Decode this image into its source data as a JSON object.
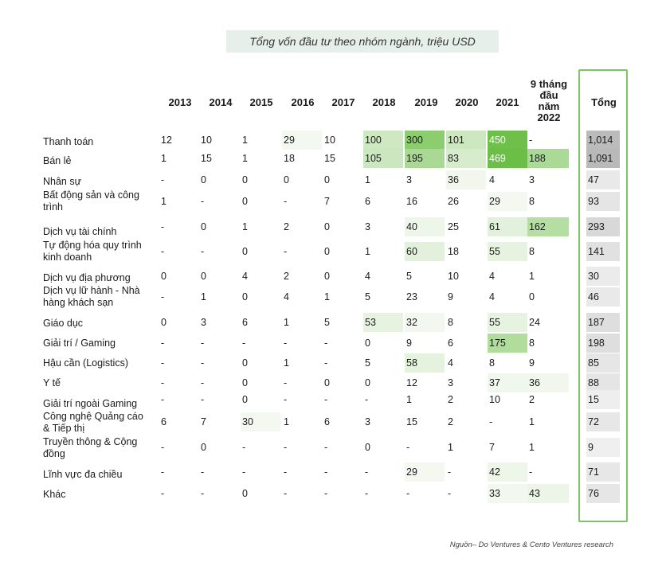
{
  "title": "Tổng vốn đầu tư theo nhóm ngành, triệu USD",
  "footer": "Nguồn– Do Ventures & Cento Ventures research",
  "colors": {
    "frame": "#7cc663",
    "title_bg": "#e7efe9",
    "heat_min": "#f3f8f0",
    "heat_max": "#6bbf47",
    "total_low": "#f2f2f2",
    "total_high": "#b9b9b9"
  },
  "chart_data": {
    "type": "table",
    "title": "Tổng vốn đầu tư theo nhóm ngành, triệu USD",
    "columns": [
      "2013",
      "2014",
      "2015",
      "2016",
      "2017",
      "2018",
      "2019",
      "2020",
      "2021",
      "9 tháng đầu năm 2022",
      "Tổng"
    ],
    "column_lines": [
      [
        "2013"
      ],
      [
        "2014"
      ],
      [
        "2015"
      ],
      [
        "2016"
      ],
      [
        "2017"
      ],
      [
        "2018"
      ],
      [
        "2019"
      ],
      [
        "2020"
      ],
      [
        "2021"
      ],
      [
        "9 tháng",
        "đầu",
        "năm",
        "2022"
      ],
      [
        "Tổng"
      ]
    ],
    "rows": [
      {
        "label": "Thanh toán",
        "values": [
          "12",
          "10",
          "1",
          "29",
          "10",
          "100",
          "300",
          "101",
          "450",
          "-",
          "1,014"
        ]
      },
      {
        "label": "Bán lẻ",
        "values": [
          "1",
          "15",
          "1",
          "18",
          "15",
          "105",
          "195",
          "83",
          "469",
          "188",
          "1,091"
        ]
      },
      {
        "label": "Nhân sự",
        "values": [
          "-",
          "0",
          "0",
          "0",
          "0",
          "1",
          "3",
          "36",
          "4",
          "3",
          "47"
        ]
      },
      {
        "label": "Bất động sản và công trình",
        "values": [
          "1",
          "-",
          "0",
          "-",
          "7",
          "6",
          "16",
          "26",
          "29",
          "8",
          "93"
        ]
      },
      {
        "label": "Dịch vụ tài chính",
        "values": [
          "-",
          "0",
          "1",
          "2",
          "0",
          "3",
          "40",
          "25",
          "61",
          "162",
          "293"
        ]
      },
      {
        "label": "Tự động hóa quy trình kinh doanh",
        "values": [
          "-",
          "-",
          "0",
          "-",
          "0",
          "1",
          "60",
          "18",
          "55",
          "8",
          "141"
        ]
      },
      {
        "label": "Dịch vụ địa phương",
        "values": [
          "0",
          "0",
          "4",
          "2",
          "0",
          "4",
          "5",
          "10",
          "4",
          "1",
          "30"
        ]
      },
      {
        "label": "Dịch vụ lữ hành - Nhà hàng khách sạn",
        "values": [
          "-",
          "1",
          "0",
          "4",
          "1",
          "5",
          "23",
          "9",
          "4",
          "0",
          "46"
        ]
      },
      {
        "label": "Giáo dục",
        "values": [
          "0",
          "3",
          "6",
          "1",
          "5",
          "53",
          "32",
          "8",
          "55",
          "24",
          "187"
        ]
      },
      {
        "label": "Giải trí / Gaming",
        "values": [
          "-",
          "-",
          "-",
          "-",
          "-",
          "0",
          "9",
          "6",
          "175",
          "8",
          "198"
        ]
      },
      {
        "label": "Hậu cần (Logistics)",
        "values": [
          "-",
          "-",
          "0",
          "1",
          "-",
          "5",
          "58",
          "4",
          "8",
          "9",
          "85"
        ]
      },
      {
        "label": "Y tế",
        "values": [
          "-",
          "-",
          "0",
          "-",
          "0",
          "0",
          "12",
          "3",
          "37",
          "36",
          "88"
        ]
      },
      {
        "label": "Giải trí ngoài Gaming",
        "values": [
          "-",
          "-",
          "0",
          "-",
          "-",
          "-",
          "1",
          "2",
          "10",
          "2",
          "15"
        ]
      },
      {
        "label": "Công nghệ Quảng cáo & Tiếp thị",
        "values": [
          "6",
          "7",
          "30",
          "1",
          "6",
          "3",
          "15",
          "2",
          "-",
          "1",
          "72"
        ]
      },
      {
        "label": "Truyền thông & Cộng đồng",
        "values": [
          "-",
          "0",
          "-",
          "-",
          "-",
          "0",
          "-",
          "1",
          "7",
          "1",
          "9"
        ]
      },
      {
        "label": "Lĩnh vực đa chiều",
        "values": [
          "-",
          "-",
          "-",
          "-",
          "-",
          "-",
          "29",
          "-",
          "42",
          "-",
          "71"
        ]
      },
      {
        "label": "Khác",
        "values": [
          "-",
          "-",
          "0",
          "-",
          "-",
          "-",
          "-",
          "-",
          "33",
          "43",
          "76"
        ]
      }
    ]
  }
}
